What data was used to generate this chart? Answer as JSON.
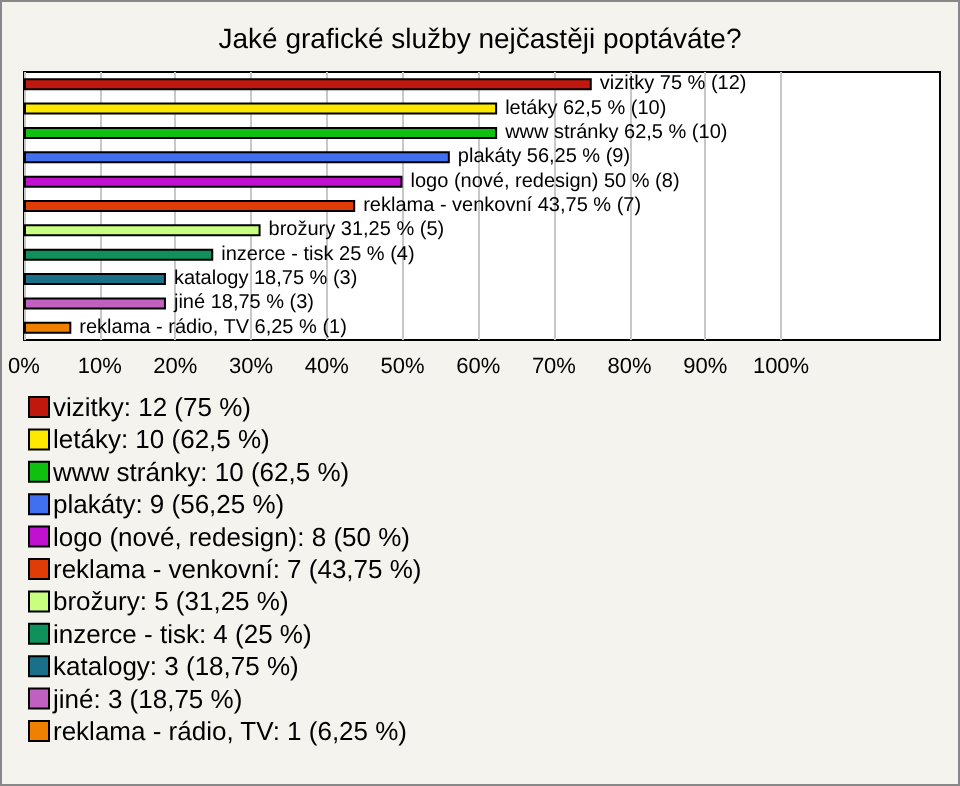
{
  "chart_data": {
    "type": "bar",
    "orientation": "horizontal",
    "stacked": true,
    "title": "Jaké grafické služby nejčastěji poptáváte?",
    "categories": [
      null,
      null,
      null,
      null,
      null,
      null,
      null,
      null,
      null,
      null,
      null
    ],
    "series": [
      {
        "name": "vizitky: 12 (75 %)",
        "color": "#c0180c",
        "values": [
          75,
          null,
          null,
          null,
          null,
          null,
          null,
          null,
          null,
          null,
          null
        ],
        "value_labels": [
          "vizitky 75 % (12)",
          null,
          null,
          null,
          null,
          null,
          null,
          null,
          null,
          null,
          null
        ]
      },
      {
        "name": "letáky: 10 (62,5 %)",
        "color": "#ffe800",
        "values": [
          null,
          62.5,
          null,
          null,
          null,
          null,
          null,
          null,
          null,
          null,
          null
        ],
        "value_labels": [
          null,
          "letáky 62,5 % (10)",
          null,
          null,
          null,
          null,
          null,
          null,
          null,
          null,
          null
        ]
      },
      {
        "name": "www stránky: 10 (62,5 %)",
        "color": "#10c010",
        "values": [
          null,
          null,
          62.5,
          null,
          null,
          null,
          null,
          null,
          null,
          null,
          null
        ],
        "value_labels": [
          null,
          null,
          "www stránky 62,5 % (10)",
          null,
          null,
          null,
          null,
          null,
          null,
          null,
          null
        ]
      },
      {
        "name": "plakáty: 9 (56,25 %)",
        "color": "#4070f0",
        "values": [
          null,
          null,
          null,
          56.25,
          null,
          null,
          null,
          null,
          null,
          null,
          null
        ],
        "value_labels": [
          null,
          null,
          null,
          "plakáty 56,25 % (9)",
          null,
          null,
          null,
          null,
          null,
          null,
          null
        ]
      },
      {
        "name": "logo (nové, redesign): 8 (50 %)",
        "color": "#c010d0",
        "values": [
          null,
          null,
          null,
          null,
          50,
          null,
          null,
          null,
          null,
          null,
          null
        ],
        "value_labels": [
          null,
          null,
          null,
          null,
          "logo (nové, redesign) 50 % (8)",
          null,
          null,
          null,
          null,
          null,
          null
        ]
      },
      {
        "name": "reklama - venkovní: 7 (43,75 %)",
        "color": "#e03c08",
        "values": [
          null,
          null,
          null,
          null,
          null,
          43.75,
          null,
          null,
          null,
          null,
          null
        ],
        "value_labels": [
          null,
          null,
          null,
          null,
          null,
          "reklama - venkovní 43,75 % (7)",
          null,
          null,
          null,
          null,
          null
        ]
      },
      {
        "name": "brožury: 5 (31,25 %)",
        "color": "#c8ff80",
        "values": [
          null,
          null,
          null,
          null,
          null,
          null,
          31.25,
          null,
          null,
          null,
          null
        ],
        "value_labels": [
          null,
          null,
          null,
          null,
          null,
          null,
          "brožury 31,25 % (5)",
          null,
          null,
          null,
          null
        ]
      },
      {
        "name": "inzerce - tisk: 4 (25 %)",
        "color": "#10905a",
        "values": [
          null,
          null,
          null,
          null,
          null,
          null,
          null,
          25,
          null,
          null,
          null
        ],
        "value_labels": [
          null,
          null,
          null,
          null,
          null,
          null,
          null,
          "inzerce - tisk 25 % (4)",
          null,
          null,
          null
        ]
      },
      {
        "name": "katalogy: 3 (18,75 %)",
        "color": "#1a7088",
        "values": [
          null,
          null,
          null,
          null,
          null,
          null,
          null,
          null,
          18.75,
          null,
          null
        ],
        "value_labels": [
          null,
          null,
          null,
          null,
          null,
          null,
          null,
          null,
          "katalogy 18,75 % (3)",
          null,
          null
        ]
      },
      {
        "name": "jiné: 3 (18,75 %)",
        "color": "#c060c0",
        "values": [
          null,
          null,
          null,
          null,
          null,
          null,
          null,
          null,
          null,
          18.75,
          null
        ],
        "value_labels": [
          null,
          null,
          null,
          null,
          null,
          null,
          null,
          null,
          null,
          "jiné 18,75 % (3)",
          null
        ]
      },
      {
        "name": "reklama - rádio, TV: 1 (6,25 %)",
        "color": "#f08000",
        "values": [
          null,
          null,
          null,
          null,
          null,
          null,
          null,
          null,
          null,
          null,
          6.25
        ],
        "value_labels": [
          null,
          null,
          null,
          null,
          null,
          null,
          null,
          null,
          null,
          null,
          "reklama - rádio, TV 6,25 % (1)"
        ]
      }
    ],
    "xlim": [
      0,
      121
    ],
    "xticks": [
      {
        "value": 0,
        "label": "0%"
      },
      {
        "value": 10,
        "label": "10%"
      },
      {
        "value": 20,
        "label": "20%"
      },
      {
        "value": 30,
        "label": "30%"
      },
      {
        "value": 40,
        "label": "40%"
      },
      {
        "value": 50,
        "label": "50%"
      },
      {
        "value": 60,
        "label": "60%"
      },
      {
        "value": 70,
        "label": "70%"
      },
      {
        "value": 80,
        "label": "80%"
      },
      {
        "value": 90,
        "label": "90%"
      },
      {
        "value": 100,
        "label": "100%"
      }
    ],
    "grid": "x",
    "legend": "bottom left",
    "tick_labels": "x"
  }
}
